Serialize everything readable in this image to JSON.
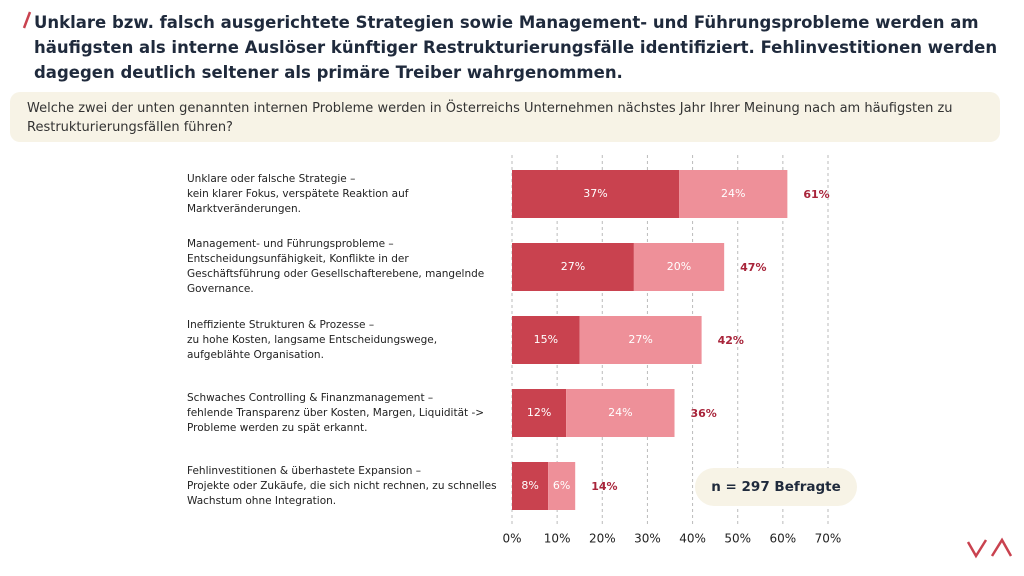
{
  "header": {
    "title": "Unklare bzw. falsch ausgerichtete Strategien sowie Management- und Führungsprobleme werden am häufigsten als interne Auslöser künftiger Restrukturierungsfälle identifiziert. Fehlinvestitionen werden dagegen deutlich seltener als primäre Treiber wahrgenommen.",
    "question": "Welche zwei der unten genannten internen Probleme werden in Österreichs Unternehmen nächstes Jahr Ihrer Meinung nach am häufigsten zu Restrukturierungsfällen führen?"
  },
  "chart_data": {
    "type": "bar",
    "orientation": "horizontal",
    "stacked": true,
    "categories": [
      "Unklare oder falsche Strategie –",
      "Management- und Führungsprobleme –",
      "Ineffiziente Strukturen & Prozesse –",
      "Schwaches Controlling & Finanzmanagement –",
      "Fehlinvestitionen & überhastete Expansion –"
    ],
    "category_details": [
      "kein klarer Fokus, verspätete Reaktion auf Marktveränderungen.",
      "Entscheidungsunfähigkeit, Konflikte in der Geschäftsführung oder Gesellschafterebene, mangelnde Governance.",
      "zu hohe Kosten, langsame Entscheidungswege, aufgeblähte Organisation.",
      "fehlende Transparenz über Kosten, Margen, Liquidität -> Probleme werden zu spät erkannt.",
      "Projekte oder Zukäufe, die sich nicht rechnen, zu schnelles Wachstum ohne Integration."
    ],
    "series": [
      {
        "color": "#c9424f",
        "values": [
          37,
          27,
          15,
          12,
          8
        ],
        "value_labels": [
          "37%",
          "27%",
          "15%",
          "12%",
          "8%"
        ]
      },
      {
        "color": "#ee9099",
        "values": [
          24,
          20,
          27,
          24,
          6
        ],
        "value_labels": [
          "24%",
          "20%",
          "27%",
          "24%",
          "6%"
        ]
      }
    ],
    "totals": [
      61,
      47,
      42,
      36,
      14
    ],
    "total_labels": [
      "61%",
      "47%",
      "42%",
      "36%",
      "14%"
    ],
    "xlim": [
      0,
      70
    ],
    "xticks": [
      {
        "value": 0,
        "label": "0%"
      },
      {
        "value": 10,
        "label": "10%"
      },
      {
        "value": 20,
        "label": "20%"
      },
      {
        "value": 30,
        "label": "30%"
      },
      {
        "value": 40,
        "label": "40%"
      },
      {
        "value": 50,
        "label": "50%"
      },
      {
        "value": 60,
        "label": "60%"
      },
      {
        "value": 70,
        "label": "70%"
      }
    ],
    "grid": true,
    "note": "n = 297 Befragte"
  }
}
